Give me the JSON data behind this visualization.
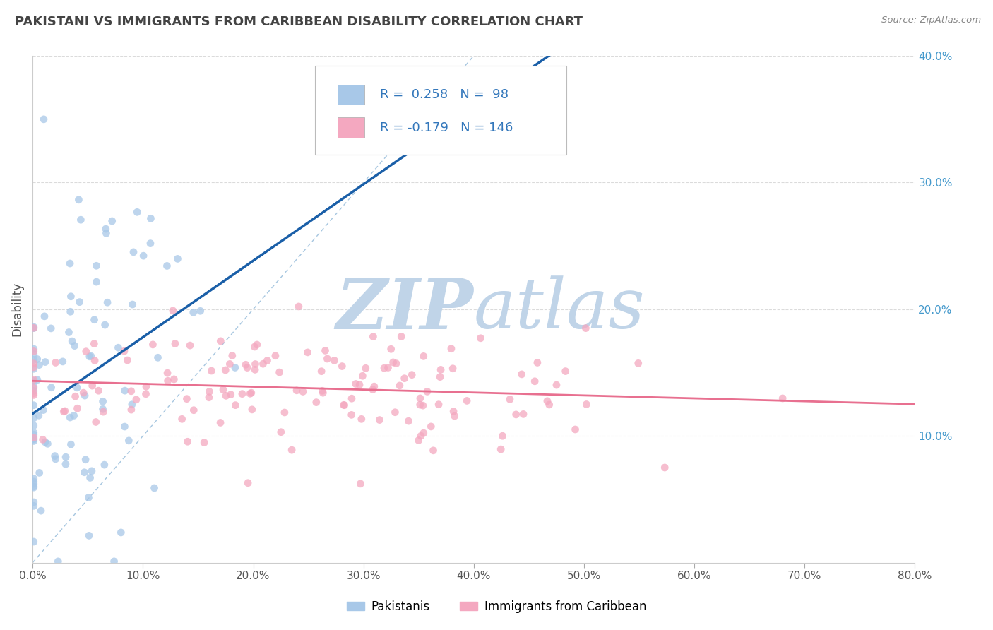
{
  "title": "PAKISTANI VS IMMIGRANTS FROM CARIBBEAN DISABILITY CORRELATION CHART",
  "source_text": "Source: ZipAtlas.com",
  "ylabel": "Disability",
  "legend_label1_r": "0.258",
  "legend_label1_n": "98",
  "legend_label2_r": "-0.179",
  "legend_label2_n": "146",
  "xlim": [
    0.0,
    0.8
  ],
  "ylim": [
    0.0,
    0.4
  ],
  "xtick_vals": [
    0.0,
    0.1,
    0.2,
    0.3,
    0.4,
    0.5,
    0.6,
    0.7,
    0.8
  ],
  "xlabel_ticks": [
    "0.0%",
    "10.0%",
    "20.0%",
    "30.0%",
    "40.0%",
    "50.0%",
    "60.0%",
    "70.0%",
    "80.0%"
  ],
  "ytick_vals": [
    0.1,
    0.2,
    0.3,
    0.4
  ],
  "ytick_labels_right": [
    "10.0%",
    "20.0%",
    "30.0%",
    "40.0%"
  ],
  "scatter_blue_color": "#a8c8e8",
  "scatter_pink_color": "#f4a8c0",
  "trend_blue_color": "#1a5fa8",
  "trend_pink_color": "#e87090",
  "diagonal_color": "#90b8d8",
  "watermark_zip_color": "#c0d4e8",
  "watermark_atlas_color": "#c0d4e8",
  "background_color": "#ffffff",
  "grid_color": "#d8d8d8",
  "title_color": "#444444",
  "source_color": "#888888",
  "blue_n": 98,
  "pink_n": 146,
  "blue_R": 0.258,
  "pink_R": -0.179,
  "footer_labels": [
    "Pakistanis",
    "Immigrants from Caribbean"
  ]
}
